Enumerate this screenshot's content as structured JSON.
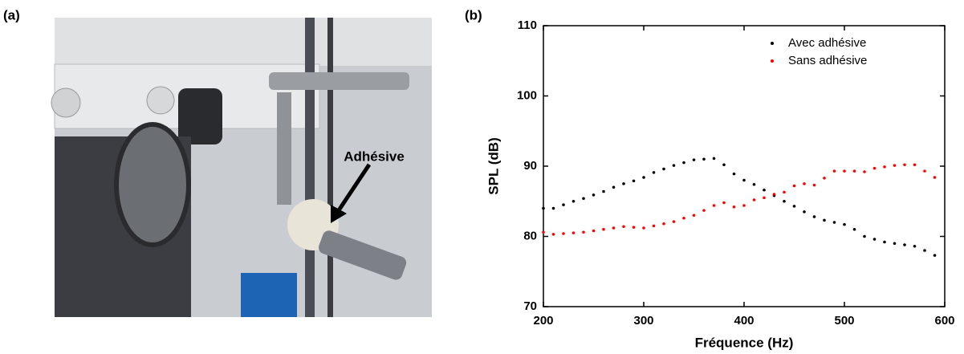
{
  "figure": {
    "label_a": "(a)",
    "label_b": "(b)",
    "photo_annotation": "Adhésive"
  },
  "chart_data": {
    "type": "scatter",
    "xlabel": "Fréquence (Hz)",
    "ylabel": "SPL (dB)",
    "x": [
      200,
      210,
      220,
      230,
      240,
      250,
      260,
      270,
      280,
      290,
      300,
      310,
      320,
      330,
      340,
      350,
      360,
      370,
      380,
      390,
      400,
      410,
      420,
      430,
      440,
      450,
      460,
      470,
      480,
      490,
      500,
      510,
      520,
      530,
      540,
      550,
      560,
      570,
      580,
      590
    ],
    "series": [
      {
        "name": "Avec adhésive",
        "color": "#000000",
        "values": [
          84.0,
          84.0,
          84.5,
          85.0,
          85.4,
          85.9,
          86.4,
          87.0,
          87.5,
          87.9,
          88.4,
          89.1,
          89.6,
          90.1,
          90.5,
          90.9,
          91.0,
          91.1,
          90.2,
          88.9,
          88.0,
          87.4,
          86.6,
          85.8,
          85.0,
          84.3,
          83.5,
          82.8,
          82.3,
          82.0,
          81.7,
          81.0,
          80.0,
          79.6,
          79.2,
          79.0,
          78.8,
          78.6,
          78.0,
          77.3
        ]
      },
      {
        "name": "Sans adhésive",
        "color": "#ff0000",
        "values": [
          80.6,
          80.3,
          80.4,
          80.5,
          80.6,
          80.8,
          81.0,
          81.2,
          81.4,
          81.3,
          81.2,
          81.5,
          81.8,
          82.1,
          82.6,
          83.0,
          83.7,
          84.4,
          84.8,
          84.2,
          84.4,
          85.2,
          85.5,
          86.0,
          86.3,
          87.2,
          87.5,
          87.3,
          88.3,
          89.3,
          89.3,
          89.3,
          89.2,
          89.7,
          89.9,
          90.1,
          90.2,
          90.2,
          89.3,
          88.4
        ]
      }
    ],
    "xlim": [
      200,
      600
    ],
    "ylim": [
      70,
      110
    ],
    "xticks": [
      200,
      300,
      400,
      500,
      600
    ],
    "yticks": [
      70,
      80,
      90,
      100,
      110
    ],
    "grid": false,
    "legend": "upper right"
  }
}
